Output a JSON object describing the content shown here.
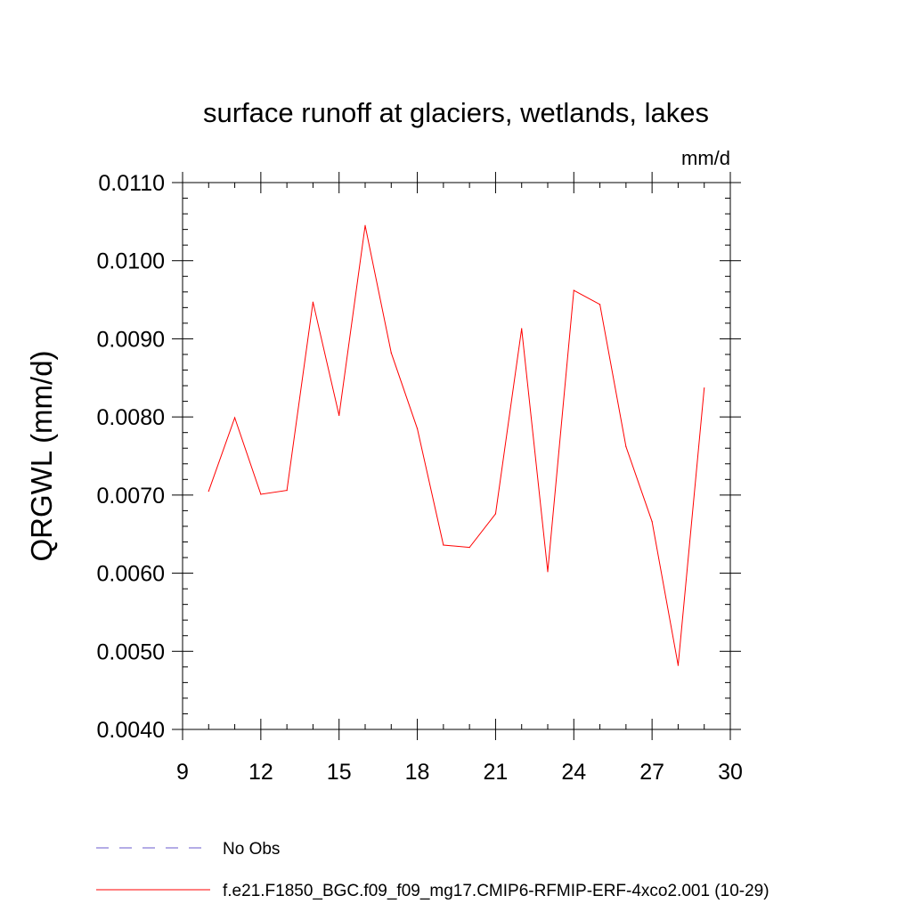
{
  "chart_data": {
    "type": "line",
    "title": "surface runoff at glaciers, wetlands, lakes",
    "units_label": "mm/d",
    "ylabel": "QRGWL  (mm/d)",
    "xlabel": "",
    "xlim": [
      9,
      30
    ],
    "ylim": [
      0.004,
      0.011
    ],
    "x_ticks": [
      9,
      12,
      15,
      18,
      21,
      24,
      27,
      30
    ],
    "y_ticks": [
      0.004,
      0.005,
      0.006,
      0.007,
      0.008,
      0.009,
      0.01,
      0.011
    ],
    "y_tick_labels": [
      "0.0040",
      "0.0050",
      "0.0060",
      "0.0070",
      "0.0080",
      "0.0090",
      "0.0100",
      "0.0110"
    ],
    "grid": false,
    "legend_position": "bottom",
    "series": [
      {
        "name": "f.e21.F1850_BGC.f09_f09_mg17.CMIP6-RFMIP-ERF-4xco2.001 (10-29)",
        "color": "#ff0000",
        "style": "solid",
        "x": [
          10,
          11,
          12,
          13,
          14,
          15,
          16,
          17,
          18,
          19,
          20,
          21,
          22,
          23,
          24,
          25,
          26,
          27,
          28,
          29
        ],
        "y": [
          0.00705,
          0.00799,
          0.00701,
          0.00706,
          0.00947,
          0.00802,
          0.01045,
          0.00882,
          0.00785,
          0.00636,
          0.00633,
          0.00676,
          0.00913,
          0.00602,
          0.00962,
          0.00944,
          0.00762,
          0.00666,
          0.00482,
          0.00837
        ]
      }
    ],
    "legend": [
      {
        "label": "No Obs",
        "color": "#6a5acd",
        "style": "dashed"
      },
      {
        "label": "f.e21.F1850_BGC.f09_f09_mg17.CMIP6-RFMIP-ERF-4xco2.001 (10-29)",
        "color": "#ff0000",
        "style": "solid"
      }
    ]
  }
}
